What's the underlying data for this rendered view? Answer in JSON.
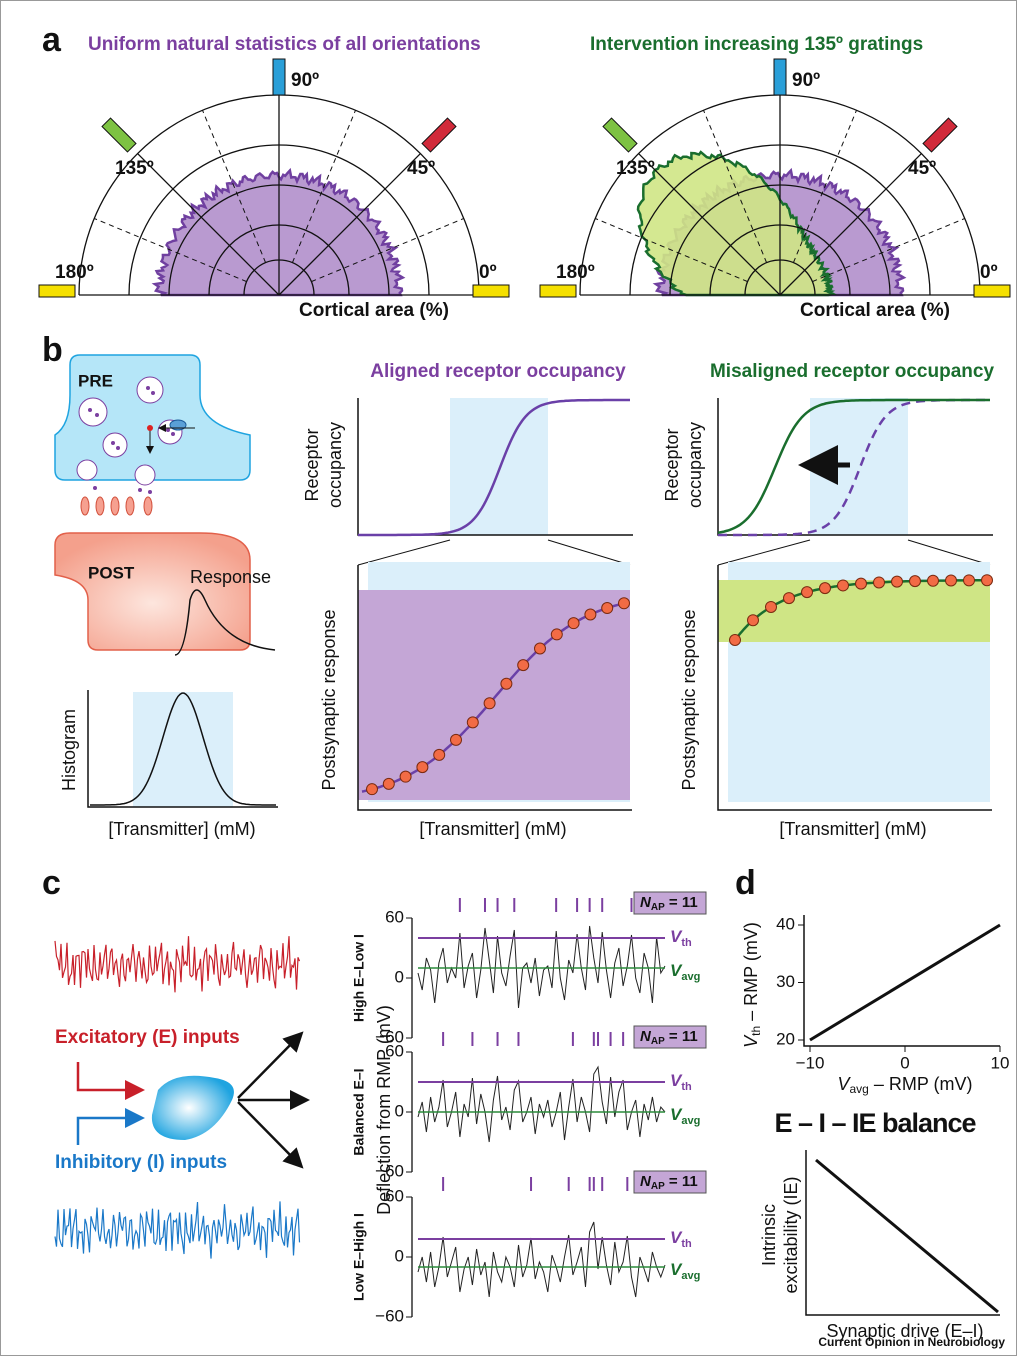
{
  "panel_a": {
    "label": "a",
    "titles": [
      "Uniform natural statistics of all orientations",
      "Intervention increasing 135º gratings"
    ],
    "angle_labels": [
      "0º",
      "45º",
      "90º",
      "135º",
      "180º"
    ],
    "axis_label": "Cortical area (%)"
  },
  "panel_b": {
    "label": "b",
    "titles": [
      "Aligned receptor occupancy",
      "Misaligned receptor occupancy"
    ],
    "pre": "PRE",
    "post": "POST",
    "response": "Response",
    "histogram_label": "Histogram",
    "xlabel": "[Transmitter] (mM)",
    "occupancy_label": [
      "Receptor",
      "occupancy"
    ],
    "response_label": "Postsynaptic response"
  },
  "panel_c": {
    "label": "c",
    "inputs": [
      "Excitatory (E) inputs",
      "Inhibitory (I) inputs"
    ],
    "ylabel": "Deflection from RMP (mV)",
    "ylim": [
      -60,
      60
    ],
    "yticks": [
      60,
      0,
      {
        "value": -60,
        "label": "−60"
      }
    ],
    "nap": {
      "symbol": "N",
      "sub": "AP",
      "rest": " = 11"
    },
    "vth": {
      "symbol": "V",
      "sub": "th"
    },
    "vavg": {
      "symbol": "V",
      "sub": "avg"
    },
    "rows": [
      {
        "name": "High E–Low I",
        "vth": 40,
        "vavg": 10,
        "trace": [
          5,
          -12,
          20,
          8,
          -25,
          15,
          30,
          -5,
          10,
          0,
          45,
          -10,
          12,
          25,
          -20,
          8,
          50,
          18,
          -15,
          42,
          5,
          -8,
          22,
          48,
          -30,
          10,
          15,
          -5,
          20,
          -18,
          8,
          12,
          -10,
          47,
          0,
          -22,
          18,
          5,
          44,
          10,
          -12,
          52,
          20,
          -5,
          46,
          8,
          -20,
          15,
          30,
          -8,
          12,
          43,
          0,
          -15,
          25,
          10,
          -25,
          41,
          5,
          12
        ]
      },
      {
        "name": "Balanced E–I",
        "vth": 30,
        "vavg": 0,
        "trace": [
          -5,
          10,
          -20,
          15,
          -10,
          5,
          32,
          -15,
          0,
          20,
          -25,
          8,
          -5,
          34,
          -12,
          18,
          0,
          -30,
          12,
          36,
          -8,
          5,
          -18,
          22,
          31,
          -10,
          0,
          15,
          -22,
          8,
          -5,
          12,
          -15,
          0,
          20,
          -28,
          5,
          33,
          -10,
          15,
          0,
          -20,
          38,
          45,
          10,
          -12,
          35,
          -5,
          20,
          32,
          -18,
          0,
          12,
          -25,
          8,
          -8,
          15,
          -10,
          5,
          0
        ]
      },
      {
        "name": "Low E–High I",
        "vth": 18,
        "vavg": -10,
        "trace": [
          -15,
          0,
          -25,
          5,
          -30,
          -10,
          20,
          -20,
          -5,
          10,
          -35,
          -12,
          0,
          -28,
          8,
          -18,
          -5,
          -40,
          5,
          -15,
          -25,
          0,
          -10,
          -30,
          12,
          -20,
          -8,
          19,
          -22,
          -5,
          -15,
          -35,
          2,
          -10,
          -25,
          0,
          22,
          -18,
          -5,
          10,
          -30,
          25,
          35,
          -12,
          20,
          -8,
          -28,
          15,
          -15,
          -5,
          21,
          -20,
          -40,
          0,
          -12,
          -25,
          5,
          -10,
          -20,
          -8
        ]
      }
    ]
  },
  "panel_d": {
    "label": "d",
    "top": {
      "type": "line",
      "ylabel": {
        "symbol": "V",
        "sub": "th",
        "rest": " – RMP (mV)"
      },
      "xlabel": {
        "symbol": "V",
        "sub": "avg",
        "rest": " – RMP (mV)"
      },
      "x": [
        -10,
        10
      ],
      "values": [
        20,
        40
      ],
      "xlim": [
        -10,
        10
      ],
      "ylim": [
        20,
        40
      ],
      "xticks": [
        {
          "value": -10,
          "label": "−10"
        },
        0,
        10
      ],
      "yticks": [
        20,
        30,
        40
      ]
    },
    "balance_title": "E – I – IE balance",
    "bottom": {
      "ylabel": [
        "Intrinsic",
        "excitability (IE)"
      ],
      "xlabel": "Synaptic drive (E–I)"
    }
  },
  "footer": "Current Opinion in Neurobiology"
}
